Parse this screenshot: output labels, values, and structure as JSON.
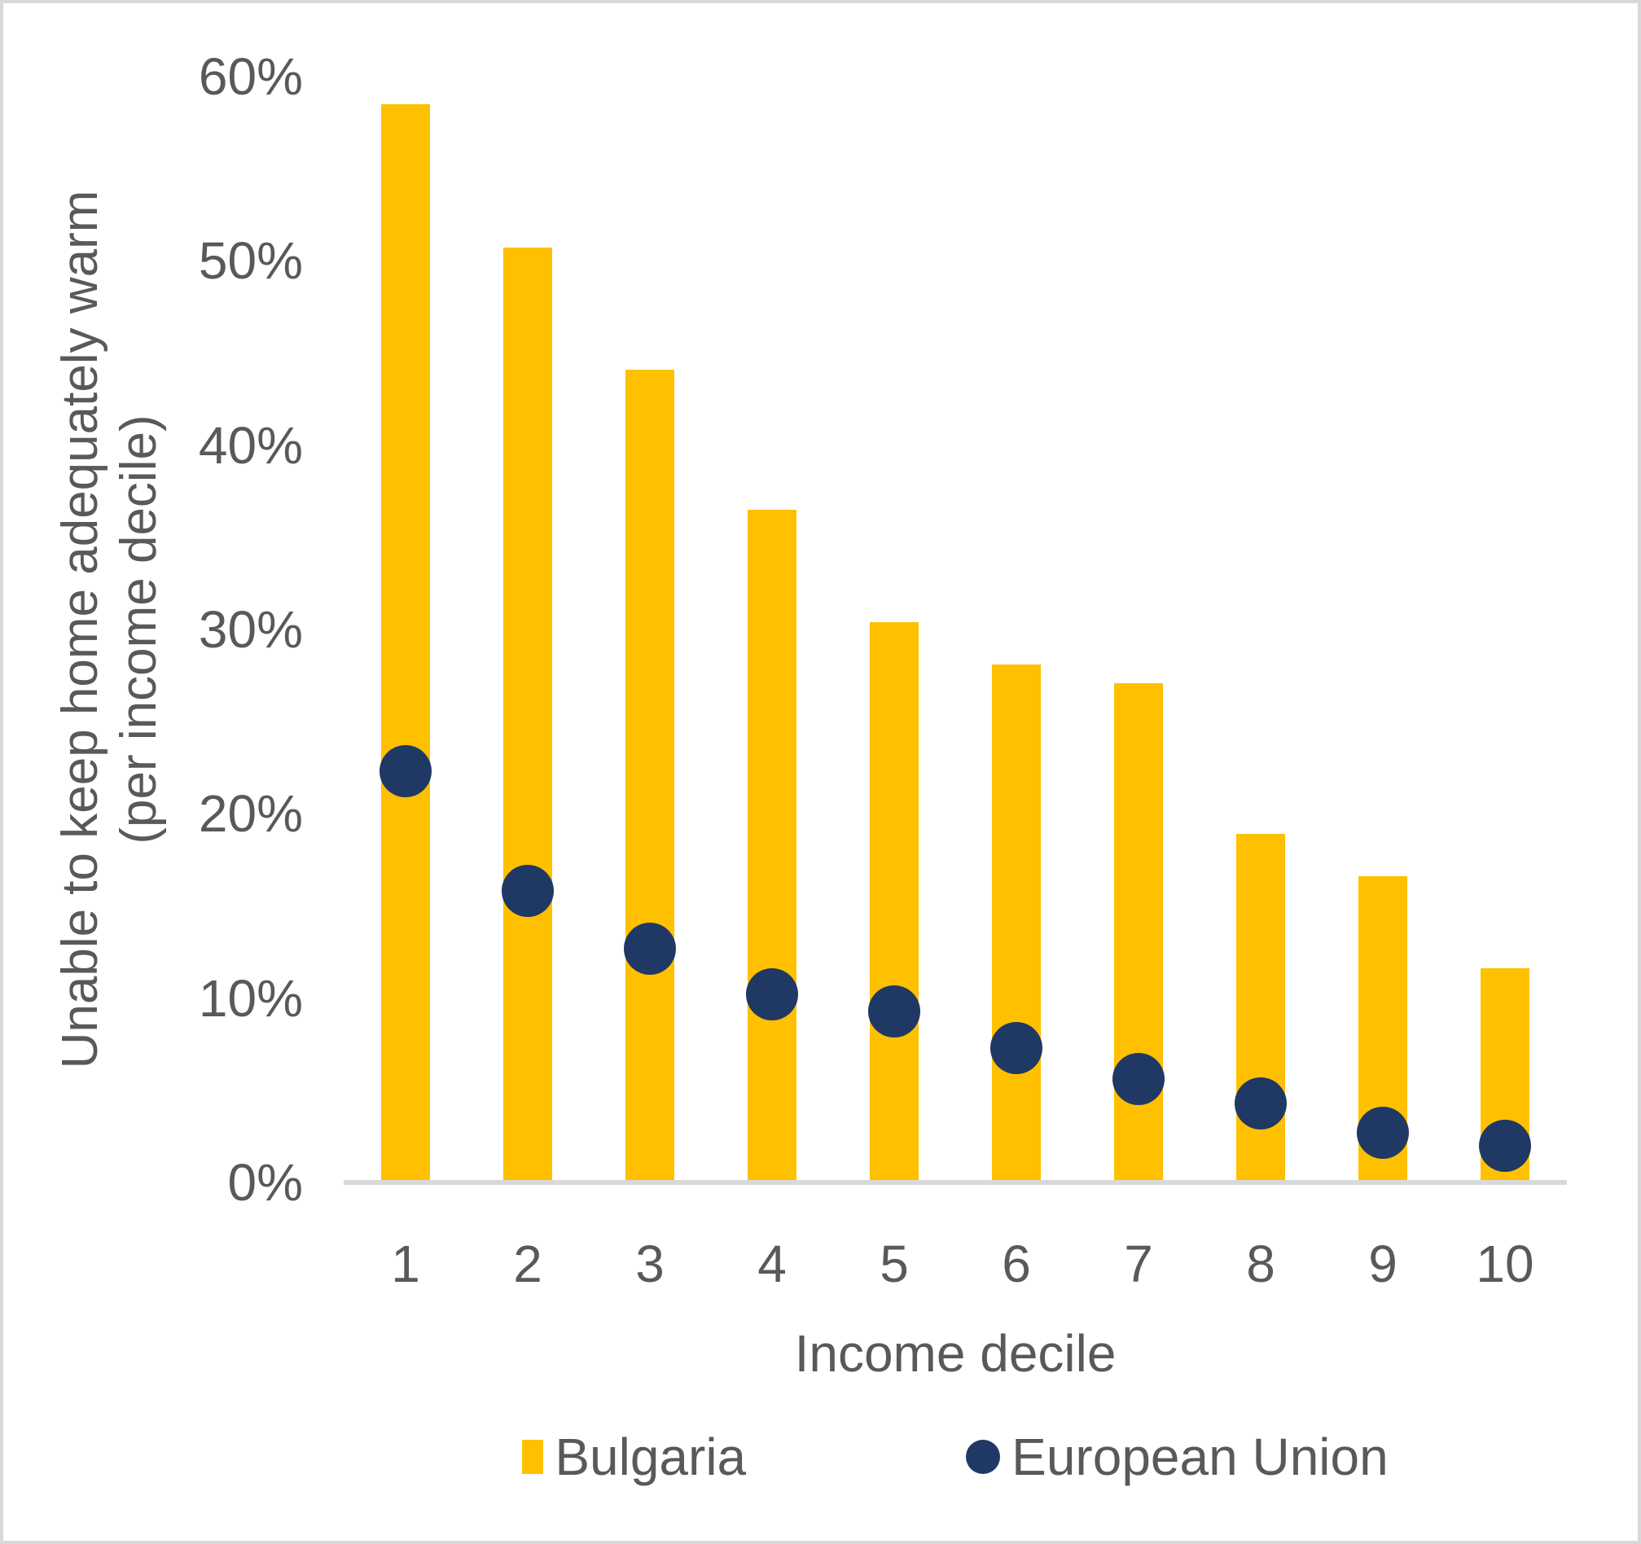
{
  "chart_data": {
    "type": "bar",
    "title": "",
    "categories": [
      "1",
      "2",
      "3",
      "4",
      "5",
      "6",
      "7",
      "8",
      "9",
      "10"
    ],
    "series": [
      {
        "name": "Bulgaria",
        "type": "bar",
        "color": "#FFC000",
        "values": [
          58.5,
          50.7,
          44.1,
          36.5,
          30.4,
          28.1,
          27.1,
          18.9,
          16.6,
          11.6
        ]
      },
      {
        "name": "European Union",
        "type": "scatter",
        "color": "#1F3864",
        "values": [
          22.3,
          15.8,
          12.7,
          10.2,
          9.3,
          7.3,
          5.6,
          4.3,
          2.7,
          2.0
        ]
      }
    ],
    "xlabel": "Income decile",
    "ylabel": "Unable to keep home adequately warm (per income decile)",
    "ylabel_lines": [
      "Unable to keep home adequately warm",
      "(per income decile)"
    ],
    "ylim": [
      0,
      60
    ],
    "yticks": [
      0,
      10,
      20,
      30,
      40,
      50,
      60
    ],
    "ytick_labels": [
      "0%",
      "10%",
      "20%",
      "30%",
      "40%",
      "50%",
      "60%"
    ],
    "grid": false,
    "legend_position": "bottom",
    "legend": [
      {
        "label": "Bulgaria",
        "marker": "square",
        "color": "#FFC000"
      },
      {
        "label": "European Union",
        "marker": "circle",
        "color": "#1F3864"
      }
    ]
  },
  "colors": {
    "background": "#FFFFFF",
    "frame_border": "#D9D9D9",
    "axis_line": "#D9D9D9",
    "text": "#595959"
  }
}
